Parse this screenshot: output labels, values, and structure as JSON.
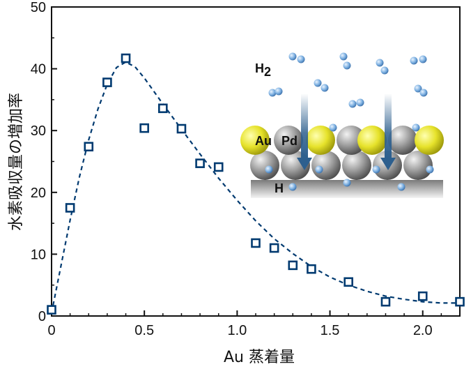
{
  "chart_data": {
    "type": "scatter",
    "title": "",
    "xlabel": "Au 蒸着量",
    "ylabel": "水素吸収量の増加率",
    "xlim": [
      0,
      2.2
    ],
    "ylim": [
      0,
      50
    ],
    "x_ticks": [
      "0",
      "0.5",
      "1.0",
      "1.5",
      "2.0"
    ],
    "y_ticks": [
      "0",
      "10",
      "20",
      "30",
      "40",
      "50"
    ],
    "grid": false,
    "series": [
      {
        "marker": "square-open",
        "color": "#003a70",
        "points": [
          {
            "x": 0.0,
            "y": 1.0
          },
          {
            "x": 0.1,
            "y": 17.5
          },
          {
            "x": 0.2,
            "y": 27.4
          },
          {
            "x": 0.3,
            "y": 37.8
          },
          {
            "x": 0.4,
            "y": 41.7
          },
          {
            "x": 0.5,
            "y": 30.4
          },
          {
            "x": 0.6,
            "y": 33.6
          },
          {
            "x": 0.7,
            "y": 30.3
          },
          {
            "x": 0.8,
            "y": 24.7
          },
          {
            "x": 0.9,
            "y": 24.1
          },
          {
            "x": 1.1,
            "y": 11.8
          },
          {
            "x": 1.2,
            "y": 11.0
          },
          {
            "x": 1.3,
            "y": 8.2
          },
          {
            "x": 1.4,
            "y": 7.6
          },
          {
            "x": 1.6,
            "y": 5.5
          },
          {
            "x": 1.8,
            "y": 2.3
          },
          {
            "x": 2.0,
            "y": 3.2
          },
          {
            "x": 2.2,
            "y": 2.3
          }
        ]
      }
    ],
    "fit_curve": {
      "style": "dashed",
      "color": "#003a70",
      "points": [
        {
          "x": 0.0,
          "y": 0.5
        },
        {
          "x": 0.05,
          "y": 8.0
        },
        {
          "x": 0.1,
          "y": 15.5
        },
        {
          "x": 0.15,
          "y": 22.5
        },
        {
          "x": 0.2,
          "y": 28.5
        },
        {
          "x": 0.25,
          "y": 33.5
        },
        {
          "x": 0.3,
          "y": 37.5
        },
        {
          "x": 0.35,
          "y": 40.2
        },
        {
          "x": 0.4,
          "y": 41.1
        },
        {
          "x": 0.45,
          "y": 40.3
        },
        {
          "x": 0.5,
          "y": 38.5
        },
        {
          "x": 0.6,
          "y": 34.3
        },
        {
          "x": 0.7,
          "y": 30.2
        },
        {
          "x": 0.8,
          "y": 26.2
        },
        {
          "x": 0.9,
          "y": 22.3
        },
        {
          "x": 1.0,
          "y": 18.7
        },
        {
          "x": 1.1,
          "y": 15.4
        },
        {
          "x": 1.2,
          "y": 12.5
        },
        {
          "x": 1.3,
          "y": 10.1
        },
        {
          "x": 1.4,
          "y": 8.0
        },
        {
          "x": 1.5,
          "y": 6.3
        },
        {
          "x": 1.6,
          "y": 5.0
        },
        {
          "x": 1.7,
          "y": 4.0
        },
        {
          "x": 1.8,
          "y": 3.2
        },
        {
          "x": 1.9,
          "y": 2.7
        },
        {
          "x": 2.0,
          "y": 2.3
        },
        {
          "x": 2.1,
          "y": 2.1
        },
        {
          "x": 2.2,
          "y": 2.1
        }
      ]
    },
    "inset": {
      "gas_label": "H",
      "gas_subscript": "2",
      "au_label": "Au",
      "pd_label": "Pd",
      "h_label": "H",
      "colors": {
        "au": "#e6e22a",
        "pd": "#8a8a8a",
        "hydrogen": "#7aaee0",
        "arrow": "#2d5f8e",
        "surface": "#9a9a9a"
      }
    }
  }
}
